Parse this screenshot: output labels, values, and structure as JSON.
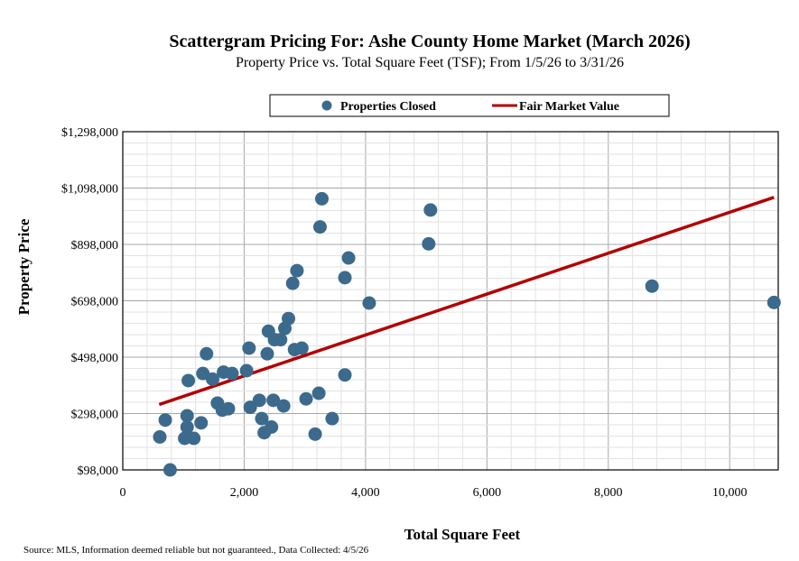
{
  "chart_data": {
    "type": "scatter",
    "title": "Scattergram Pricing For: Ashe County Home Market (March 2026)",
    "subtitle": "Property Price vs. Total Square Feet (TSF); From 1/5/26 to 3/31/26",
    "xlabel": "Total Square Feet",
    "ylabel": "Property Price",
    "xlim": [
      0,
      10800
    ],
    "ylim": [
      98000,
      1298000
    ],
    "x_ticks": [
      0,
      2000,
      4000,
      6000,
      8000,
      10000
    ],
    "x_tick_labels": [
      "0",
      "2,000",
      "4,000",
      "6,000",
      "8,000",
      "10,000"
    ],
    "y_ticks": [
      98000,
      298000,
      498000,
      698000,
      898000,
      1098000,
      1298000
    ],
    "y_tick_labels": [
      "$98,000",
      "$298,000",
      "$498,000",
      "$698,000",
      "$898,000",
      "$1,098,000",
      "$1,298,000"
    ],
    "grid": true,
    "legend": {
      "placement": "top-center",
      "entries": [
        "Properties Closed",
        "Fair Market Value"
      ]
    },
    "series": [
      {
        "name": "Properties Closed",
        "kind": "scatter",
        "color": "#3c6a8c",
        "points": [
          [
            780,
            98000
          ],
          [
            610,
            215000
          ],
          [
            700,
            275000
          ],
          [
            1020,
            210000
          ],
          [
            1060,
            250000
          ],
          [
            1060,
            290000
          ],
          [
            1170,
            210000
          ],
          [
            1290,
            265000
          ],
          [
            1080,
            415000
          ],
          [
            1320,
            440000
          ],
          [
            1380,
            510000
          ],
          [
            1480,
            420000
          ],
          [
            1560,
            335000
          ],
          [
            1640,
            310000
          ],
          [
            1660,
            445000
          ],
          [
            1740,
            315000
          ],
          [
            1800,
            440000
          ],
          [
            2040,
            450000
          ],
          [
            2080,
            530000
          ],
          [
            2100,
            320000
          ],
          [
            2250,
            345000
          ],
          [
            2290,
            280000
          ],
          [
            2330,
            230000
          ],
          [
            2380,
            510000
          ],
          [
            2400,
            590000
          ],
          [
            2450,
            250000
          ],
          [
            2480,
            345000
          ],
          [
            2500,
            560000
          ],
          [
            2600,
            560000
          ],
          [
            2650,
            325000
          ],
          [
            2670,
            600000
          ],
          [
            2730,
            635000
          ],
          [
            2800,
            760000
          ],
          [
            2830,
            525000
          ],
          [
            2870,
            805000
          ],
          [
            2950,
            530000
          ],
          [
            3020,
            350000
          ],
          [
            3170,
            225000
          ],
          [
            3230,
            370000
          ],
          [
            3250,
            960000
          ],
          [
            3280,
            1060000
          ],
          [
            3450,
            280000
          ],
          [
            3660,
            435000
          ],
          [
            3660,
            780000
          ],
          [
            3720,
            850000
          ],
          [
            4060,
            690000
          ],
          [
            5040,
            900000
          ],
          [
            5070,
            1020000
          ],
          [
            8720,
            750000
          ],
          [
            10730,
            692000
          ]
        ]
      },
      {
        "name": "Fair Market Value",
        "kind": "line",
        "color": "#b30000",
        "points": [
          [
            600,
            330000
          ],
          [
            10730,
            1065000
          ]
        ]
      }
    ]
  },
  "footer": {
    "source": "Source: MLS, Information deemed reliable but not guaranteed., Data Collected: 4/5/26"
  }
}
